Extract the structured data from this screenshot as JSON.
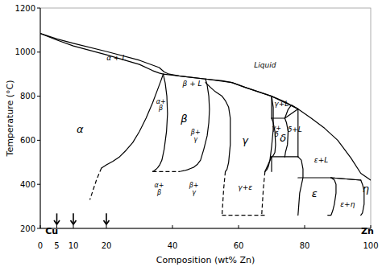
{
  "chart_data": {
    "type": "line",
    "color": "#000000",
    "x_label": "Composition (wt% Zn)",
    "y_label": "Temperature (°C)",
    "xlim": [
      0,
      100
    ],
    "ylim": [
      200,
      1200
    ],
    "xticks": [
      0,
      5,
      10,
      20,
      40,
      60,
      80,
      100
    ],
    "yticks": [
      200,
      400,
      600,
      800,
      1000,
      1200
    ],
    "series": [
      {
        "x": [
          0,
          5,
          10,
          20,
          30,
          36,
          37.5,
          39,
          42,
          46,
          50,
          55,
          58,
          62,
          66,
          70,
          74,
          78,
          82,
          86,
          90,
          94,
          97,
          100
        ],
        "values": [
          1085,
          1060,
          1040,
          1003,
          963,
          930,
          910,
          900,
          892,
          885,
          878,
          870,
          862,
          840,
          820,
          800,
          775,
          742,
          700,
          655,
          600,
          520,
          450,
          419
        ],
        "line_style": "solid"
      },
      {
        "x": [
          0,
          5,
          10,
          20,
          30,
          34,
          36,
          37.2
        ],
        "values": [
          1085,
          1055,
          1028,
          988,
          944,
          916,
          905,
          900
        ],
        "line_style": "solid"
      },
      {
        "x": [
          37.2,
          36.5,
          35.5,
          34,
          32,
          30,
          28,
          26,
          24,
          22,
          20,
          18.5
        ],
        "values": [
          900,
          870,
          830,
          770,
          700,
          640,
          590,
          555,
          525,
          505,
          488,
          474
        ],
        "line_style": "solid"
      },
      {
        "x": [
          18.5,
          17,
          15
        ],
        "values": [
          474,
          420,
          330
        ],
        "line_style": "dashed"
      },
      {
        "x": [
          37.2,
          37.8,
          38.3,
          38.5,
          38.2,
          37.5,
          36.8,
          36.2,
          35.5,
          35
        ],
        "values": [
          900,
          860,
          800,
          720,
          640,
          560,
          510,
          490,
          475,
          468
        ],
        "line_style": "solid"
      },
      {
        "x": [
          35,
          34.5,
          34
        ],
        "values": [
          468,
          462,
          458
        ],
        "line_style": "solid"
      },
      {
        "x": [
          50,
          50.5,
          51,
          51.2,
          51,
          50.5,
          49.5,
          48.5,
          47.5,
          46.5,
          45.5,
          44.5,
          43.5,
          42.5,
          42
        ],
        "values": [
          878,
          850,
          800,
          740,
          680,
          620,
          560,
          510,
          490,
          478,
          472,
          466,
          462,
          459,
          458
        ],
        "line_style": "solid"
      },
      {
        "x": [
          34,
          42
        ],
        "values": [
          458,
          458
        ],
        "line_style": "dashed"
      },
      {
        "x": [
          37.2,
          50
        ],
        "values": [
          900,
          878
        ],
        "line_style": "solid"
      },
      {
        "x": [
          50,
          51.5,
          53,
          55,
          56,
          57,
          57.5,
          57.5,
          57,
          56.5,
          56
        ],
        "values": [
          862,
          840,
          820,
          800,
          780,
          750,
          700,
          580,
          500,
          468,
          458
        ],
        "line_style": "solid"
      },
      {
        "x": [
          56,
          55.5,
          55
        ],
        "values": [
          458,
          380,
          260
        ],
        "line_style": "dashed"
      },
      {
        "x": [
          70,
          70.5,
          70.5,
          70,
          69.5,
          69,
          68.5,
          68
        ],
        "values": [
          800,
          750,
          650,
          570,
          510,
          480,
          465,
          458
        ],
        "line_style": "solid"
      },
      {
        "x": [
          68,
          67.5,
          67
        ],
        "values": [
          458,
          380,
          260
        ],
        "line_style": "dashed"
      },
      {
        "x": [
          55,
          68
        ],
        "values": [
          260,
          260
        ],
        "line_style": "dashed"
      },
      {
        "x": [
          70,
          70.5,
          71,
          71.2,
          71,
          70.5,
          70
        ],
        "values": [
          700,
          680,
          640,
          580,
          545,
          530,
          525
        ],
        "line_style": "solid"
      },
      {
        "x": [
          74,
          74.5,
          75,
          74.8,
          74.2,
          74
        ],
        "values": [
          700,
          680,
          640,
          580,
          545,
          525
        ],
        "line_style": "solid"
      },
      {
        "x": [
          70,
          74
        ],
        "values": [
          700,
          700
        ],
        "line_style": "solid"
      },
      {
        "x": [
          70,
          74
        ],
        "values": [
          525,
          525
        ],
        "line_style": "solid"
      },
      {
        "x": [
          74,
          74.5,
          75,
          76,
          78
        ],
        "values": [
          700,
          720,
          740,
          760,
          742
        ],
        "line_style": "solid"
      },
      {
        "x": [
          78,
          79,
          79.5,
          79.5,
          79,
          78.5,
          78
        ],
        "values": [
          525,
          510,
          470,
          430,
          395,
          360,
          260
        ],
        "line_style": "solid"
      },
      {
        "x": [
          88,
          89,
          89.5,
          89.5,
          89,
          88.5,
          88,
          87
        ],
        "values": [
          430,
          420,
          400,
          360,
          310,
          280,
          260,
          260
        ],
        "line_style": "solid"
      },
      {
        "x": [
          78,
          88
        ],
        "values": [
          430,
          430
        ],
        "line_style": "solid"
      },
      {
        "x": [
          97,
          97.5,
          98,
          98,
          97.5,
          97
        ],
        "values": [
          419,
          400,
          370,
          310,
          270,
          260
        ],
        "line_style": "solid"
      },
      {
        "x": [
          58,
          62,
          66,
          70
        ],
        "values": [
          862,
          840,
          820,
          800
        ],
        "line_style": "solid"
      },
      {
        "x": [
          50,
          58
        ],
        "values": [
          878,
          862
        ],
        "line_style": "solid"
      },
      {
        "x": [
          70,
          78
        ],
        "values": [
          800,
          742
        ],
        "line_style": "solid"
      },
      {
        "x": [
          74,
          78
        ],
        "values": [
          700,
          742
        ],
        "line_style": "solid"
      },
      {
        "x": [
          88,
          97
        ],
        "values": [
          430,
          419
        ],
        "line_style": "solid"
      },
      {
        "x": [
          88,
          97
        ],
        "values": [
          430,
          419
        ],
        "line_style": "solid"
      },
      {
        "x": [
          78,
          78
        ],
        "values": [
          525,
          742
        ],
        "line_style": "solid"
      },
      {
        "x": [
          70,
          70
        ],
        "values": [
          700,
          800
        ],
        "line_style": "solid"
      },
      {
        "x": [
          70,
          70
        ],
        "values": [
          525,
          458
        ],
        "line_style": "solid"
      },
      {
        "x": [
          68,
          70
        ],
        "values": [
          458,
          525
        ],
        "line_style": "solid"
      },
      {
        "x": [
          74,
          78
        ],
        "values": [
          525,
          525
        ],
        "line_style": "solid"
      }
    ],
    "annotations": [
      {
        "x": 12,
        "y": 650,
        "text": "α"
      },
      {
        "x": 43.5,
        "y": 700,
        "text": "β"
      },
      {
        "x": 36.5,
        "y": 760,
        "text": "α+\nβ"
      },
      {
        "x": 36,
        "y": 380,
        "text": "α+\nβ"
      },
      {
        "x": 47,
        "y": 620,
        "text": "β+\nγ"
      },
      {
        "x": 46.5,
        "y": 380,
        "text": "β+\nγ"
      },
      {
        "x": 62,
        "y": 600,
        "text": "γ"
      },
      {
        "x": 62,
        "y": 385,
        "text": "γ+ε"
      },
      {
        "x": 83,
        "y": 360,
        "text": "ε"
      },
      {
        "x": 93,
        "y": 310,
        "text": "ε+η"
      },
      {
        "x": 98.5,
        "y": 380,
        "text": "η"
      },
      {
        "x": 23,
        "y": 975,
        "text": "α + L"
      },
      {
        "x": 46,
        "y": 858,
        "text": "β + L"
      },
      {
        "x": 68,
        "y": 940,
        "text": "Liquid"
      },
      {
        "x": 73,
        "y": 765,
        "text": "γ+L"
      },
      {
        "x": 77,
        "y": 650,
        "text": "δ+L"
      },
      {
        "x": 85,
        "y": 510,
        "text": "ε+L"
      },
      {
        "x": 71.5,
        "y": 640,
        "text": "γ+\nδ"
      },
      {
        "x": 73.5,
        "y": 610,
        "text": "δ"
      }
    ],
    "arrows": [
      {
        "x": 5,
        "y_tip": 218,
        "y_tail": 268
      },
      {
        "x": 10,
        "y_tip": 218,
        "y_tail": 268
      },
      {
        "x": 20,
        "y_tip": 218,
        "y_tail": 268
      }
    ],
    "element_labels": [
      {
        "x": 1.5,
        "y": 203,
        "text": "Cu"
      },
      {
        "x": 99,
        "y": 203,
        "text": "Zn"
      }
    ]
  }
}
